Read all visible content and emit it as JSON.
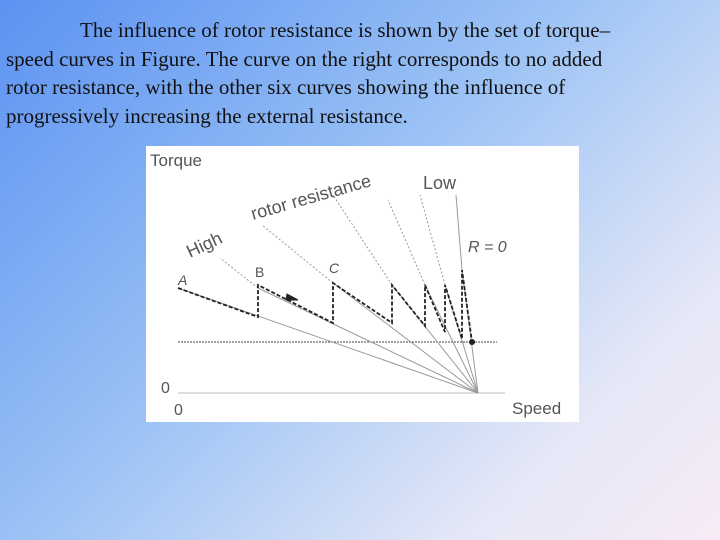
{
  "paragraph": {
    "lines": [
      "The influence of rotor resistance is shown by the set of torque–",
      "speed curves in Figure. The curve on the right corresponds to no added",
      "rotor resistance, with the other six curves showing the influence of",
      "progressively increasing the external resistance."
    ]
  },
  "figure": {
    "y_axis_label": "Torque",
    "x_axis_label": "Speed",
    "y_origin_label": "0",
    "x_origin_label": "0",
    "rotor_resistance_label": "rotor resistance",
    "high_label": "High",
    "low_label": "Low",
    "r_zero_label": "R = 0",
    "point_labels": [
      "A",
      "B",
      "C"
    ]
  }
}
